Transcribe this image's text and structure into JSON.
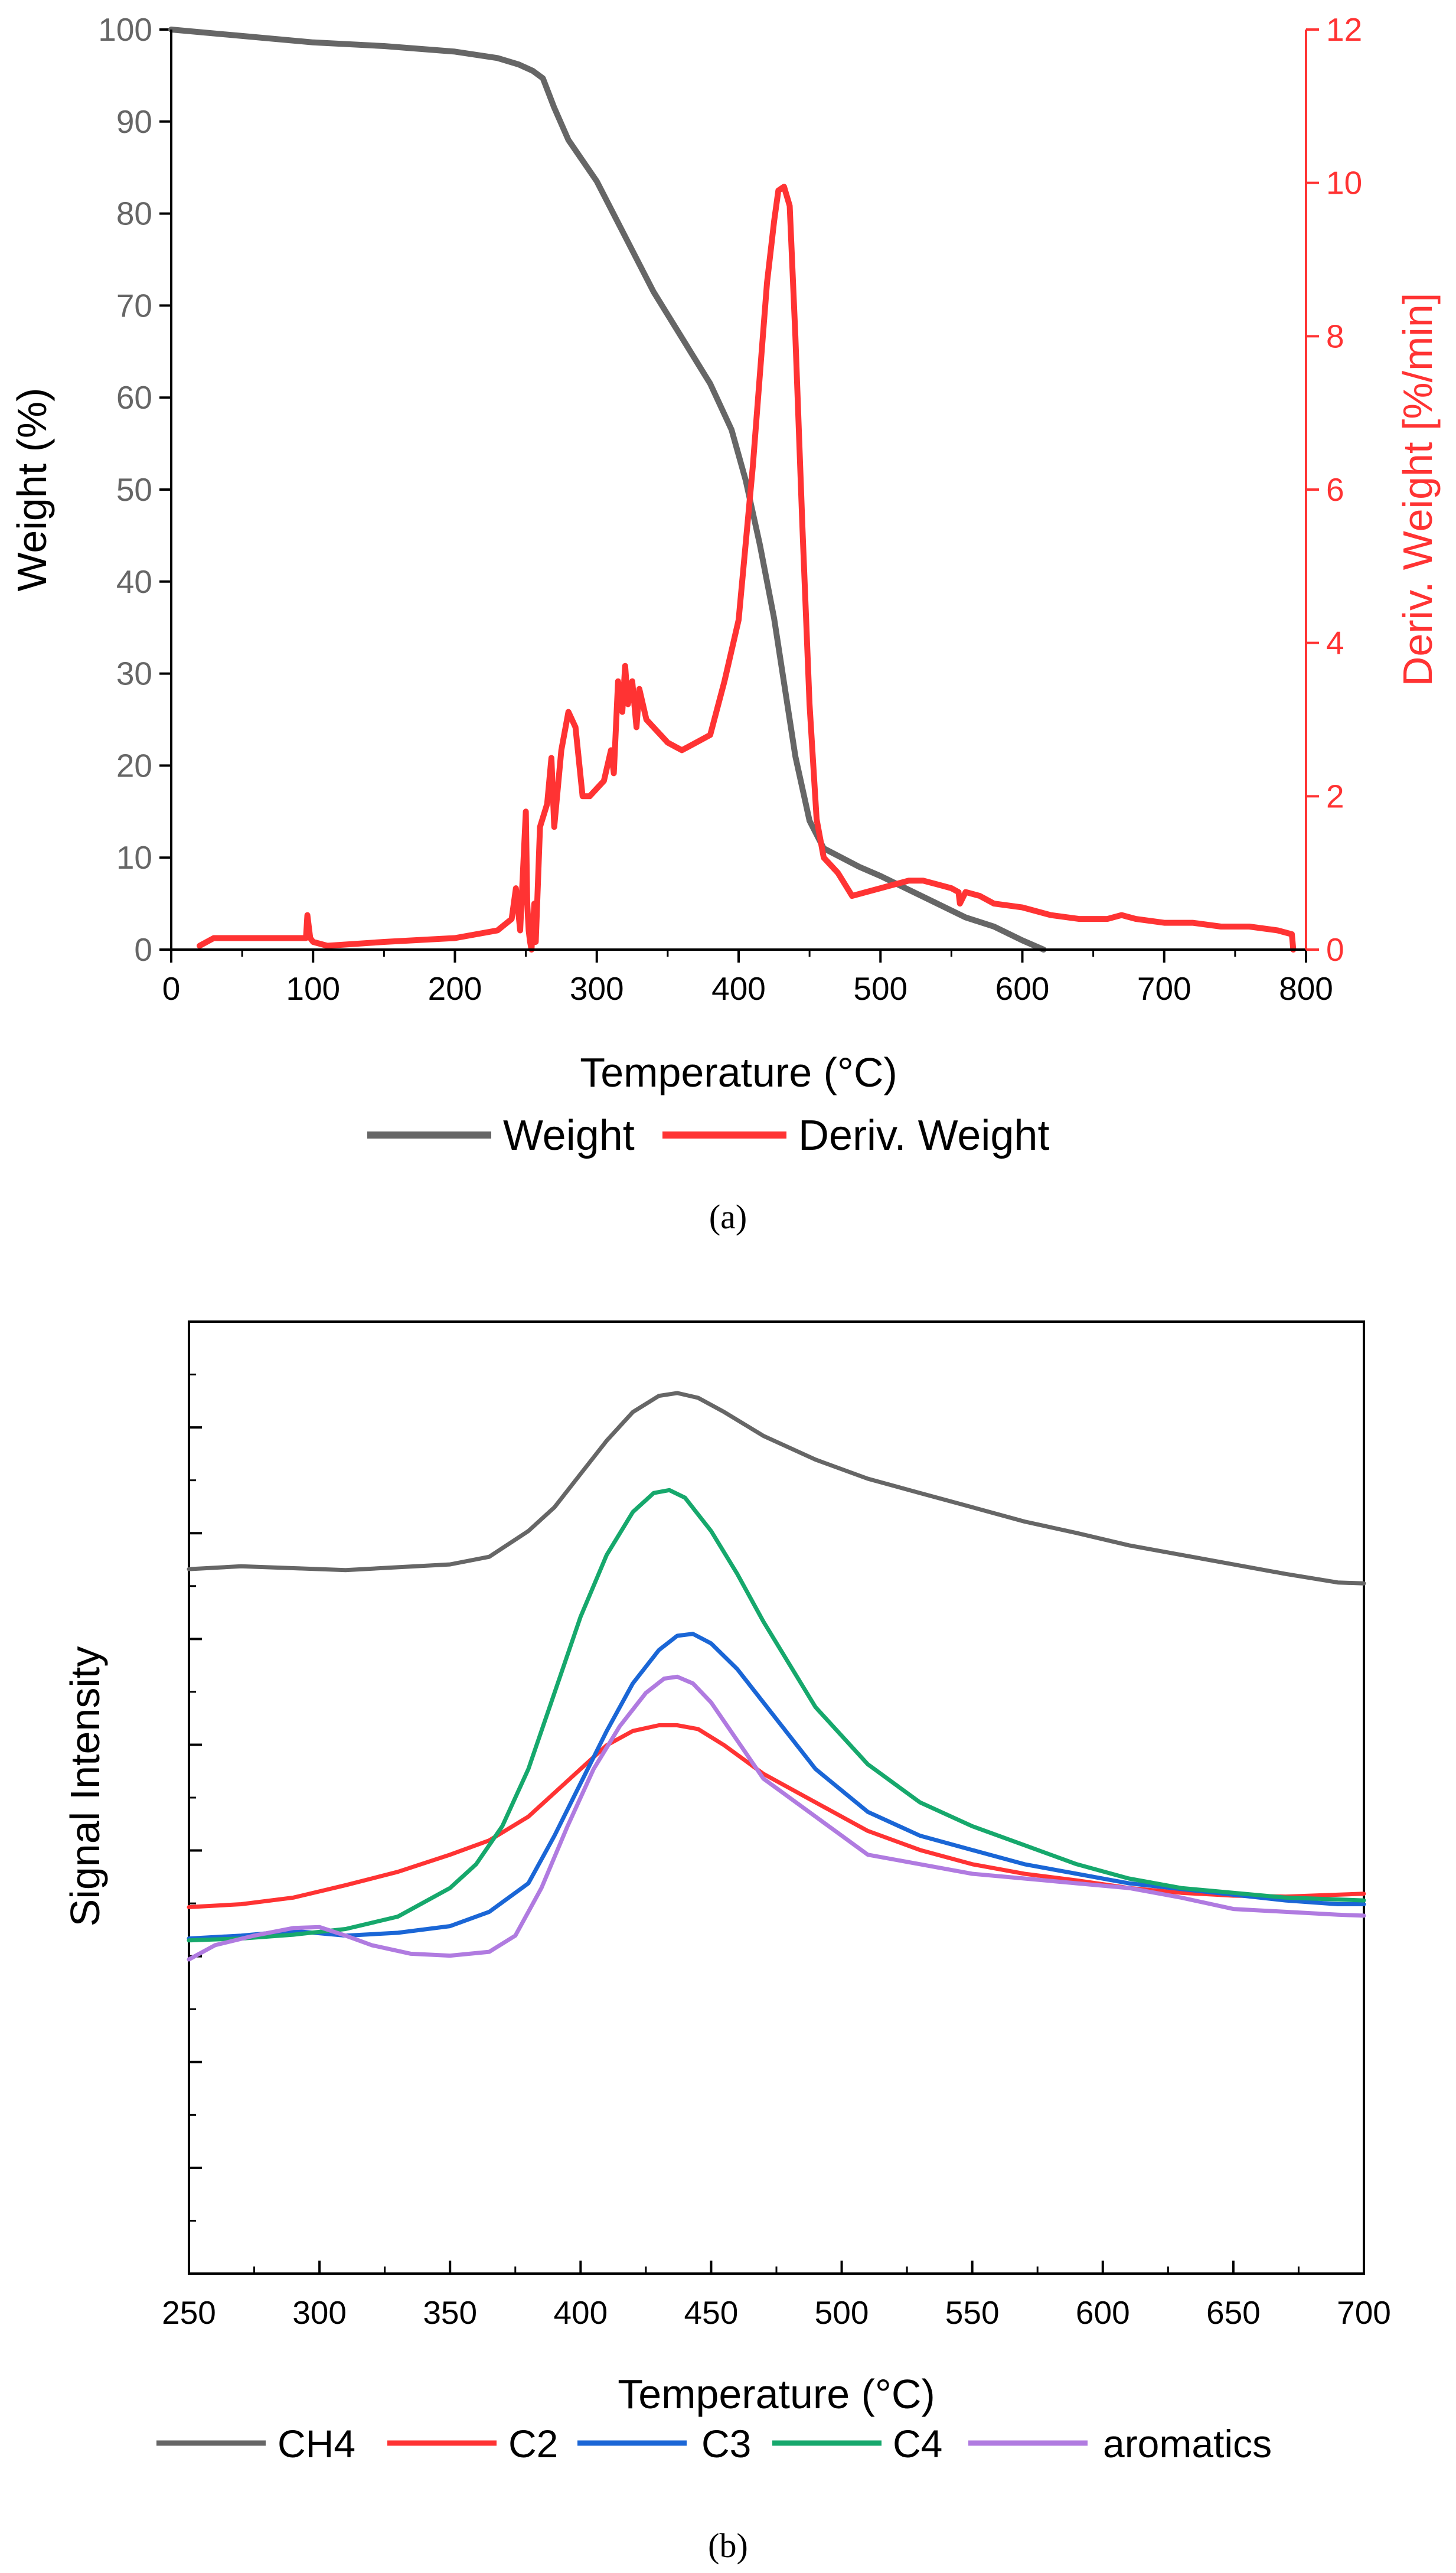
{
  "chart_data": [
    {
      "type": "line",
      "panel_label": "(a)",
      "xlabel": "Temperature (°C)",
      "ylabel": "Weight (%)",
      "y2label": "Deriv. Weight [%/min]",
      "xlim": [
        0,
        800
      ],
      "ylim": [
        0,
        100
      ],
      "y2lim": [
        0,
        12
      ],
      "x_ticks": [
        "0",
        "100",
        "200",
        "300",
        "400",
        "500",
        "600",
        "700",
        "800"
      ],
      "y_ticks": [
        "0",
        "10",
        "20",
        "30",
        "40",
        "50",
        "60",
        "70",
        "80",
        "90",
        "100"
      ],
      "y2_ticks": [
        "0",
        "2",
        "4",
        "6",
        "8",
        "10",
        "12"
      ],
      "legend": {
        "placement": "bottom",
        "entries": [
          "Weight",
          "Deriv. Weight"
        ]
      },
      "colors": {
        "weight": "#666666",
        "deriv": "#ff3333"
      },
      "series": [
        {
          "name": "Weight",
          "axis": "left",
          "x": [
            0,
            50,
            100,
            150,
            200,
            230,
            245,
            255,
            262,
            270,
            280,
            300,
            320,
            340,
            360,
            380,
            395,
            405,
            415,
            425,
            432,
            440,
            450,
            460,
            470,
            485,
            500,
            520,
            540,
            560,
            580,
            600,
            615
          ],
          "y": [
            100,
            99.3,
            98.6,
            98.2,
            97.6,
            96.9,
            96.2,
            95.5,
            94.7,
            91.5,
            88,
            83.5,
            77.5,
            71.5,
            66.5,
            61.5,
            56.5,
            51,
            44,
            36,
            29,
            21,
            14,
            11,
            10.2,
            9,
            8,
            6.5,
            5,
            3.5,
            2.5,
            1,
            0
          ]
        },
        {
          "name": "Deriv. Weight",
          "axis": "right",
          "x": [
            20,
            30,
            50,
            80,
            95,
            96,
            98,
            100,
            110,
            150,
            200,
            230,
            240,
            243,
            246,
            250,
            251,
            252,
            253,
            254,
            256,
            257,
            260,
            265,
            268,
            270,
            275,
            280,
            285,
            290,
            295,
            300,
            305,
            310,
            312,
            315,
            318,
            320,
            322,
            325,
            328,
            330,
            335,
            340,
            345,
            350,
            360,
            370,
            380,
            390,
            400,
            405,
            410,
            415,
            420,
            425,
            428,
            432,
            436,
            440,
            445,
            450,
            455,
            460,
            465,
            470,
            475,
            480,
            490,
            500,
            510,
            520,
            530,
            540,
            550,
            555,
            556,
            560,
            570,
            580,
            600,
            620,
            640,
            660,
            670,
            680,
            700,
            720,
            740,
            760,
            780,
            790,
            791
          ],
          "y": [
            0.05,
            0.15,
            0.15,
            0.15,
            0.15,
            0.45,
            0.15,
            0.1,
            0.05,
            0.1,
            0.15,
            0.25,
            0.4,
            0.8,
            0.25,
            1.8,
            0.6,
            0.25,
            0.1,
            0,
            0.6,
            0.1,
            1.6,
            1.9,
            2.5,
            1.6,
            2.6,
            3.1,
            2.9,
            2,
            2,
            2.1,
            2.2,
            2.6,
            2.3,
            3.5,
            3.1,
            3.7,
            3.2,
            3.5,
            2.9,
            3.4,
            3,
            2.9,
            2.8,
            2.7,
            2.6,
            2.7,
            2.8,
            3.5,
            4.3,
            5.3,
            6.3,
            7.5,
            8.7,
            9.5,
            9.9,
            9.95,
            9.7,
            8,
            5.5,
            3.2,
            1.7,
            1.2,
            1.1,
            1,
            0.85,
            0.7,
            0.75,
            0.8,
            0.85,
            0.9,
            0.9,
            0.85,
            0.8,
            0.75,
            0.6,
            0.75,
            0.7,
            0.6,
            0.55,
            0.45,
            0.4,
            0.4,
            0.45,
            0.4,
            0.35,
            0.35,
            0.3,
            0.3,
            0.25,
            0.2,
            0
          ]
        }
      ]
    },
    {
      "type": "line",
      "panel_label": "(b)",
      "xlabel": "Temperature (°C)",
      "ylabel": "Signal Intensity",
      "xlim": [
        250,
        700
      ],
      "ylim": [
        0,
        100
      ],
      "y_tick_labels_shown": false,
      "x_ticks": [
        "250",
        "300",
        "350",
        "400",
        "450",
        "500",
        "550",
        "600",
        "650",
        "700"
      ],
      "legend": {
        "placement": "bottom",
        "entries": [
          "CH4",
          "C2",
          "C3",
          "C4",
          "aromatics"
        ]
      },
      "colors": {
        "CH4": "#666666",
        "C2": "#ff3333",
        "C3": "#1a66d6",
        "C4": "#16a86c",
        "aromatics": "#b07be0"
      },
      "series": [
        {
          "name": "CH4",
          "x": [
            250,
            270,
            290,
            310,
            330,
            350,
            365,
            380,
            390,
            400,
            410,
            420,
            430,
            437,
            445,
            455,
            470,
            490,
            510,
            530,
            550,
            570,
            590,
            610,
            630,
            650,
            670,
            690,
            700
          ],
          "y": [
            74,
            74.3,
            74.1,
            73.9,
            74.2,
            74.5,
            75.3,
            78,
            80.5,
            84,
            87.5,
            90.5,
            92.2,
            92.5,
            92,
            90.5,
            88,
            85.5,
            83.5,
            82,
            80.5,
            79,
            77.8,
            76.5,
            75.5,
            74.5,
            73.5,
            72.6,
            72.5
          ]
        },
        {
          "name": "C2",
          "x": [
            250,
            270,
            290,
            310,
            330,
            350,
            365,
            380,
            390,
            400,
            410,
            420,
            430,
            437,
            445,
            455,
            470,
            490,
            510,
            530,
            550,
            570,
            590,
            610,
            630,
            650,
            670,
            690,
            700
          ],
          "y": [
            38.5,
            38.8,
            39.5,
            40.8,
            42.2,
            44,
            45.5,
            48,
            50.5,
            53,
            55.5,
            57,
            57.6,
            57.6,
            57.2,
            55.5,
            52.5,
            49.5,
            46.5,
            44.5,
            43,
            42,
            41.3,
            40.5,
            40,
            39.7,
            39.6,
            39.8,
            39.9
          ]
        },
        {
          "name": "C3",
          "x": [
            250,
            270,
            290,
            310,
            330,
            350,
            365,
            380,
            390,
            400,
            410,
            420,
            430,
            437,
            443,
            450,
            460,
            470,
            490,
            510,
            530,
            550,
            570,
            590,
            610,
            630,
            650,
            670,
            690,
            700
          ],
          "y": [
            35.2,
            35.5,
            36,
            35.5,
            35.8,
            36.5,
            38,
            41,
            46,
            51.5,
            57,
            62,
            65.5,
            67,
            67.2,
            66.2,
            63.5,
            60,
            53,
            48.5,
            46,
            44.5,
            43,
            42,
            41,
            40.4,
            39.8,
            39.2,
            38.8,
            38.8
          ]
        },
        {
          "name": "C4",
          "x": [
            250,
            270,
            290,
            310,
            330,
            350,
            360,
            370,
            380,
            390,
            400,
            410,
            420,
            428,
            434,
            440,
            450,
            460,
            470,
            490,
            510,
            530,
            550,
            570,
            590,
            610,
            630,
            650,
            670,
            690,
            700
          ],
          "y": [
            35,
            35.2,
            35.6,
            36.2,
            37.5,
            40.5,
            43,
            47,
            53,
            61,
            69,
            75.5,
            80,
            82,
            82.3,
            81.5,
            78,
            73.5,
            68.5,
            59.5,
            53.5,
            49.5,
            47,
            45,
            43,
            41.5,
            40.5,
            40,
            39.5,
            39.3,
            39.2
          ]
        },
        {
          "name": "aromatics",
          "x": [
            250,
            260,
            275,
            290,
            300,
            310,
            320,
            335,
            350,
            365,
            375,
            385,
            395,
            405,
            415,
            425,
            432,
            437,
            443,
            450,
            460,
            470,
            490,
            510,
            530,
            550,
            570,
            590,
            610,
            630,
            650,
            670,
            690,
            700
          ],
          "y": [
            33,
            34.5,
            35.5,
            36.3,
            36.4,
            35.5,
            34.5,
            33.6,
            33.4,
            33.8,
            35.5,
            40.5,
            47,
            53,
            57.5,
            61,
            62.5,
            62.7,
            62,
            60,
            56,
            52,
            48,
            44,
            43,
            42,
            41.5,
            41,
            40.5,
            39.5,
            38.3,
            38,
            37.7,
            37.6
          ]
        }
      ]
    }
  ]
}
